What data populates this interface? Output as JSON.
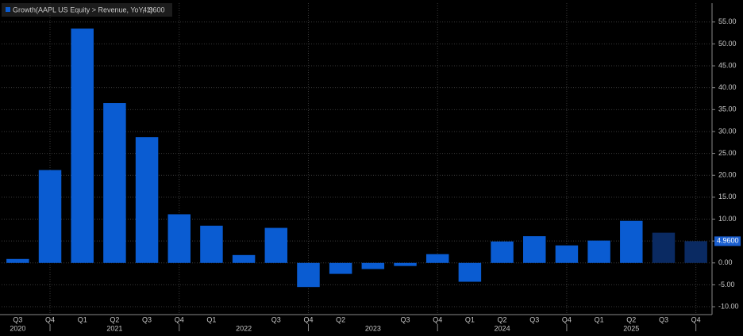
{
  "chart_data": {
    "type": "bar",
    "series": [
      {
        "name": "Growth(AAPL US Equity > Revenue, YoY, 1)",
        "values": [
          0.9,
          21.2,
          53.5,
          36.5,
          28.7,
          11.1,
          8.5,
          1.8,
          8.0,
          -5.5,
          -2.5,
          -1.4,
          -0.7,
          2.0,
          -4.3,
          4.9,
          6.1,
          4.0,
          5.1,
          9.6,
          6.9,
          4.96
        ],
        "value_labels": [
          null,
          null,
          null,
          null,
          null,
          null,
          null,
          null,
          null,
          null,
          null,
          null,
          null,
          null,
          null,
          null,
          null,
          null,
          null,
          null,
          null,
          "4.9600"
        ],
        "colors": [
          "#0a5cd2",
          "#0a5cd2",
          "#0a5cd2",
          "#0a5cd2",
          "#0a5cd2",
          "#0a5cd2",
          "#0a5cd2",
          "#0a5cd2",
          "#0a5cd2",
          "#0a5cd2",
          "#0a5cd2",
          "#0a5cd2",
          "#0a5cd2",
          "#0a5cd2",
          "#0a5cd2",
          "#0a5cd2",
          "#0a5cd2",
          "#0a5cd2",
          "#0a5cd2",
          "#0a5cd2",
          "#0a2a62",
          "#0a2a62"
        ]
      }
    ],
    "categories": [
      "Q3",
      "Q4",
      "Q1",
      "Q2",
      "Q3",
      "Q4",
      "Q1",
      null,
      "Q3",
      "Q4",
      "Q2",
      null,
      "Q3",
      "Q4",
      "Q1",
      "Q2",
      "Q3",
      "Q4",
      "Q1",
      "Q2",
      "Q3",
      "Q4"
    ],
    "years": [
      "2020",
      null,
      null,
      "2021",
      null,
      null,
      null,
      "2022",
      null,
      null,
      null,
      "2023",
      null,
      null,
      null,
      "2024",
      null,
      null,
      null,
      "2025",
      null,
      null
    ],
    "ylim": [
      -11.8,
      59.3
    ],
    "yticks": [
      {
        "value": 55,
        "label": "55.00"
      },
      {
        "value": 50,
        "label": "50.00"
      },
      {
        "value": 45,
        "label": "45.00"
      },
      {
        "value": 40,
        "label": "40.00"
      },
      {
        "value": 35,
        "label": "35.00"
      },
      {
        "value": 30,
        "label": "30.00"
      },
      {
        "value": 25,
        "label": "25.00"
      },
      {
        "value": 20,
        "label": "20.00"
      },
      {
        "value": 15,
        "label": "15.00"
      },
      {
        "value": 10,
        "label": "10.00"
      },
      {
        "value": 5,
        "label": "5.00"
      },
      {
        "value": 0,
        "label": "0.00"
      },
      {
        "value": -5,
        "label": "-5.00"
      },
      {
        "value": -10,
        "label": "-10.00"
      }
    ],
    "grid": true
  }
}
